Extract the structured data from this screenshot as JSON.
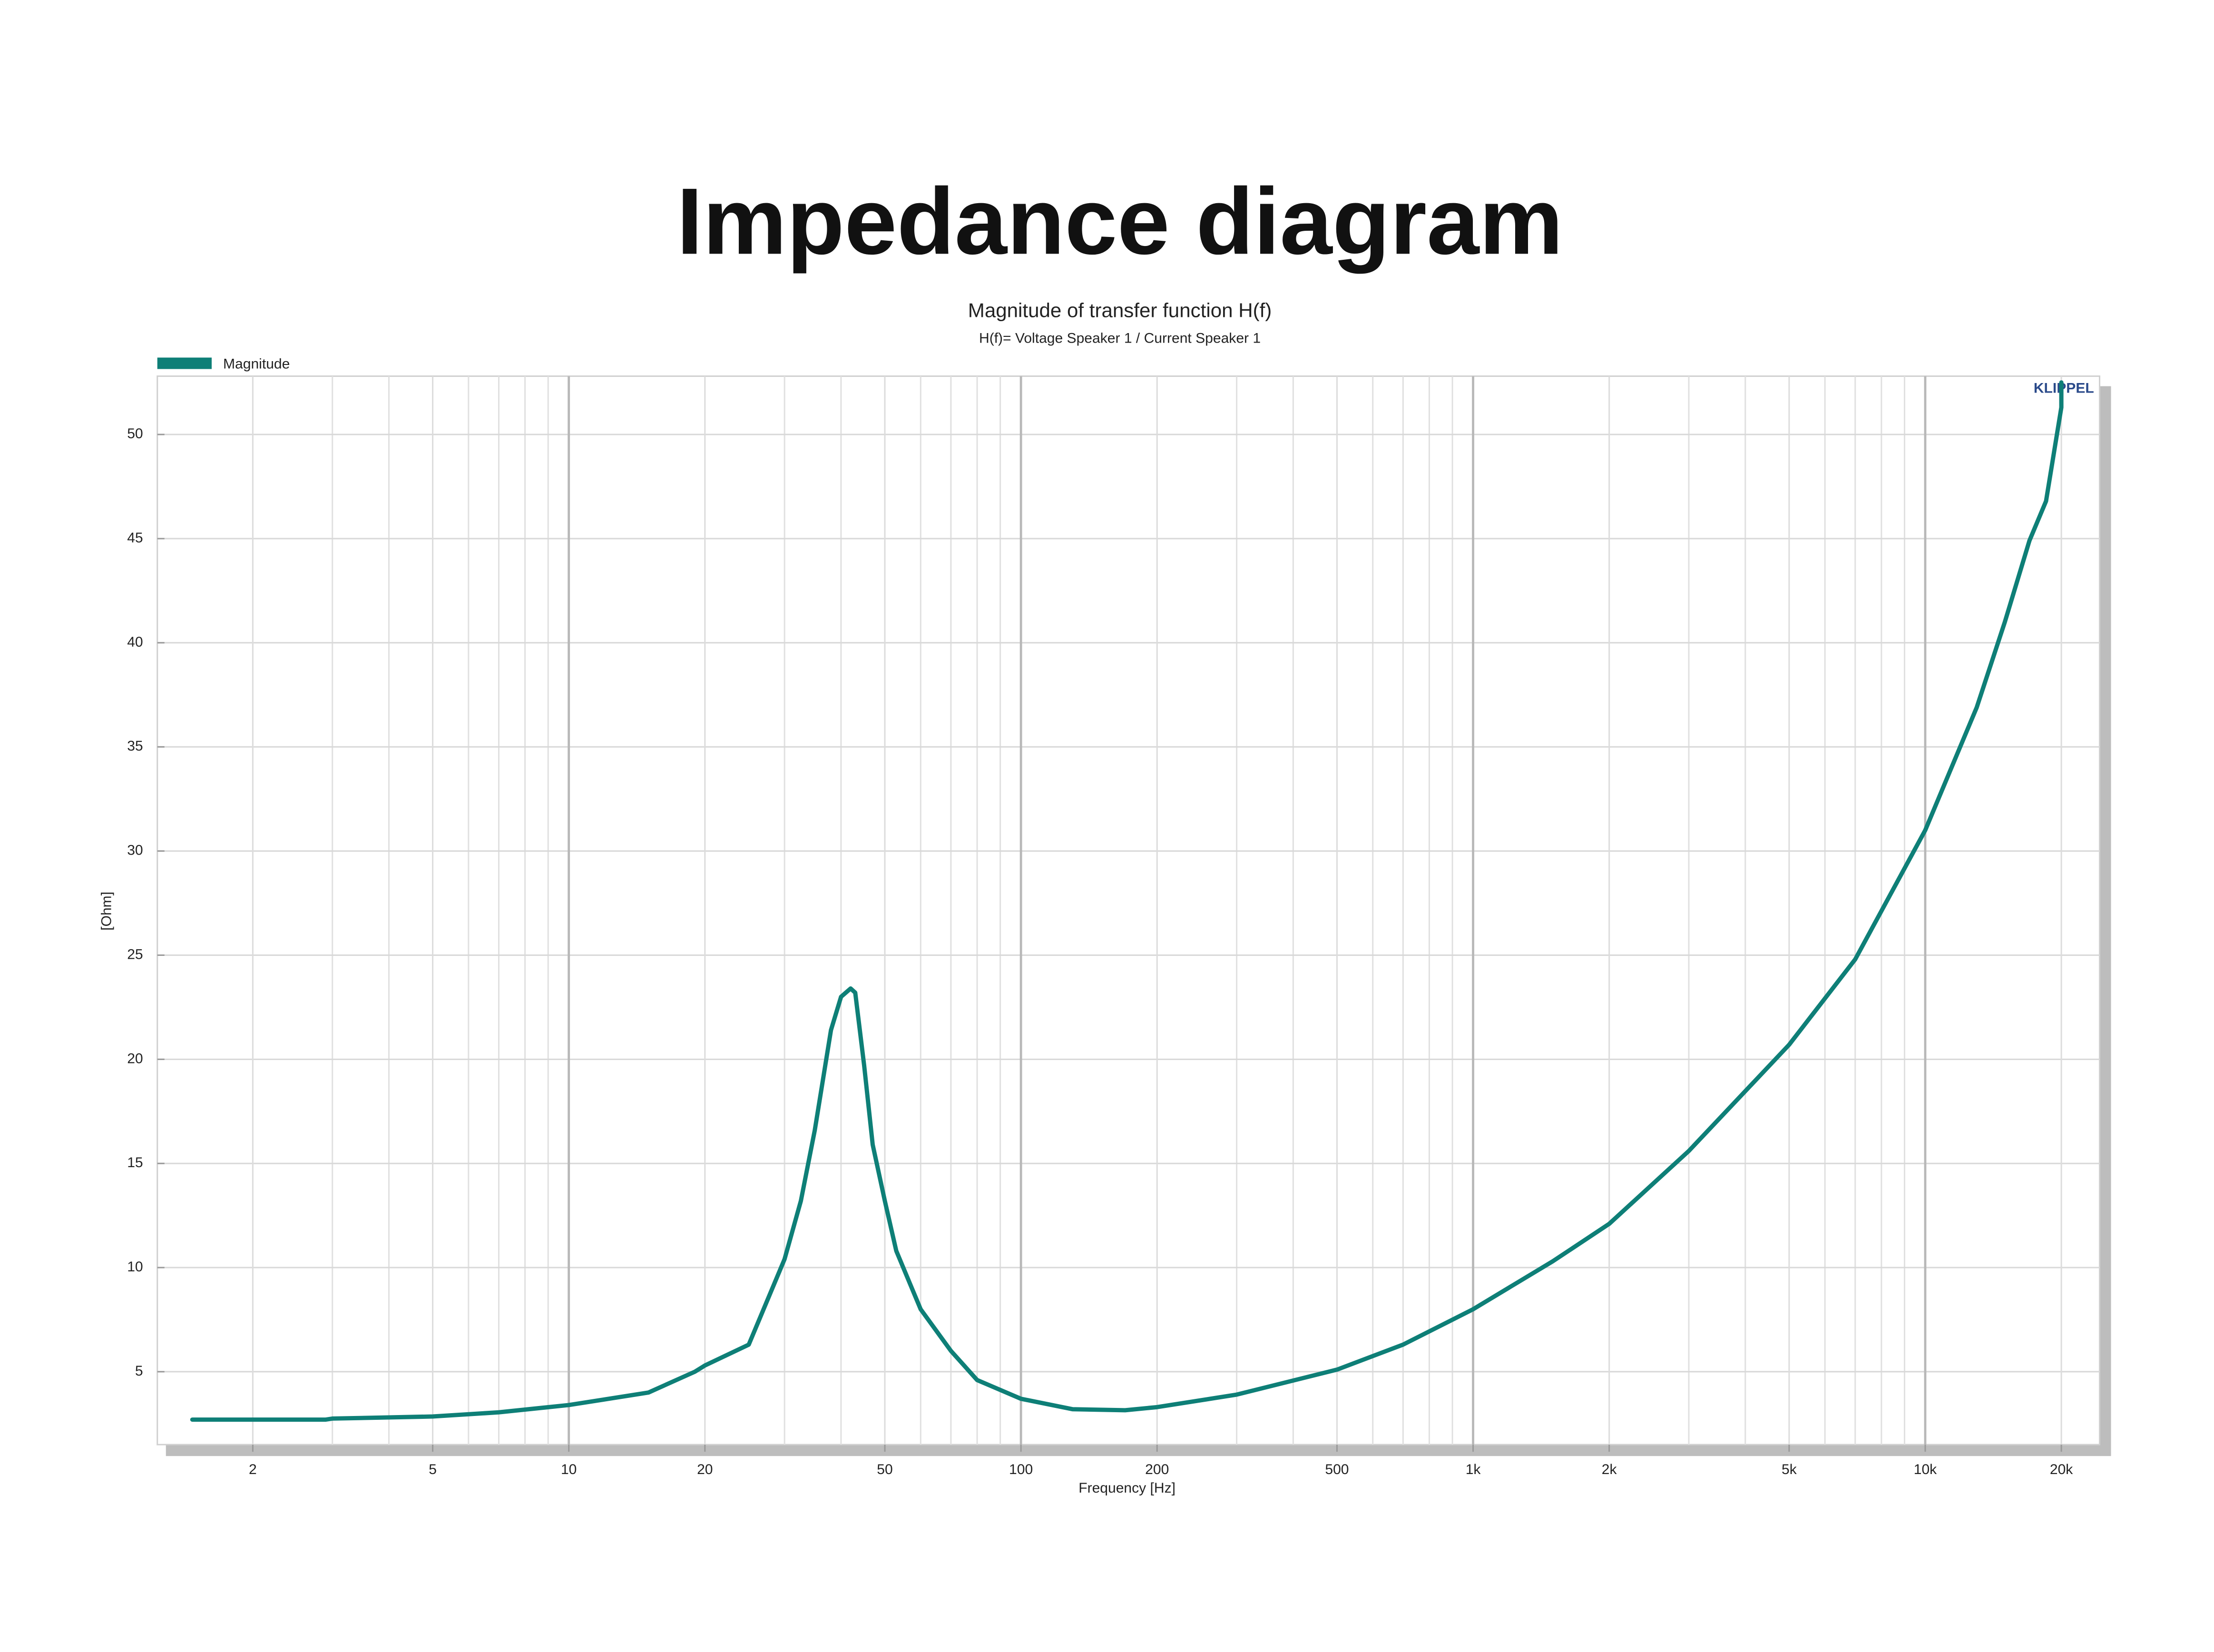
{
  "chart_data": {
    "type": "line",
    "title": "Impedance diagram",
    "subtitle": "Magnitude of transfer function H(f)",
    "subtitle2": "H(f)= Voltage Speaker 1 / Current Speaker 1",
    "brand": "KLIPPEL",
    "x_label": "Frequency [Hz]",
    "y_label": "[Ohm]",
    "xscale": "log",
    "grid": true,
    "legend": "top-left",
    "xlim": [
      1.23,
      24300
    ],
    "ylim": [
      1.5,
      52.8
    ],
    "xticks": [
      2,
      5,
      10,
      20,
      50,
      100,
      200,
      500,
      {
        "value": 1000,
        "label": "1k"
      },
      {
        "value": 2000,
        "label": "2k"
      },
      {
        "value": 5000,
        "label": "5k"
      },
      {
        "value": 10000,
        "label": "10k"
      },
      {
        "value": 20000,
        "label": "20k"
      }
    ],
    "x_minor_ticks": [
      3,
      4,
      6,
      7,
      8,
      9,
      30,
      40,
      60,
      70,
      80,
      90,
      300,
      400,
      600,
      700,
      800,
      900,
      3000,
      4000,
      6000,
      7000,
      8000,
      9000
    ],
    "yticks": [
      5,
      10,
      15,
      20,
      25,
      30,
      35,
      40,
      45,
      50
    ],
    "x": [
      1.47,
      2,
      2.9,
      3,
      5,
      7,
      10,
      15,
      19,
      20,
      25,
      30,
      32.6,
      35,
      38,
      40,
      42,
      43,
      45,
      47,
      50,
      53,
      60,
      70,
      80,
      100,
      130,
      170,
      200,
      300,
      500,
      700,
      1000,
      1500,
      2000,
      3000,
      5000,
      7000,
      10000,
      13000,
      15000,
      17000,
      18500,
      20000,
      20000
    ],
    "series": [
      {
        "name": "Magnitude",
        "color": "#0e7f77",
        "values": [
          2.7,
          2.7,
          2.7,
          2.75,
          2.85,
          3.05,
          3.4,
          4.0,
          5.0,
          5.3,
          6.3,
          10.4,
          13.2,
          16.6,
          21.4,
          23.0,
          23.4,
          23.2,
          19.7,
          15.9,
          13.2,
          10.8,
          8.0,
          6.0,
          4.6,
          3.7,
          3.2,
          3.15,
          3.3,
          3.9,
          5.1,
          6.3,
          8.0,
          10.3,
          12.1,
          15.6,
          20.7,
          24.8,
          31.0,
          36.9,
          41.0,
          44.9,
          46.8,
          51.3,
          52.5
        ]
      }
    ]
  }
}
